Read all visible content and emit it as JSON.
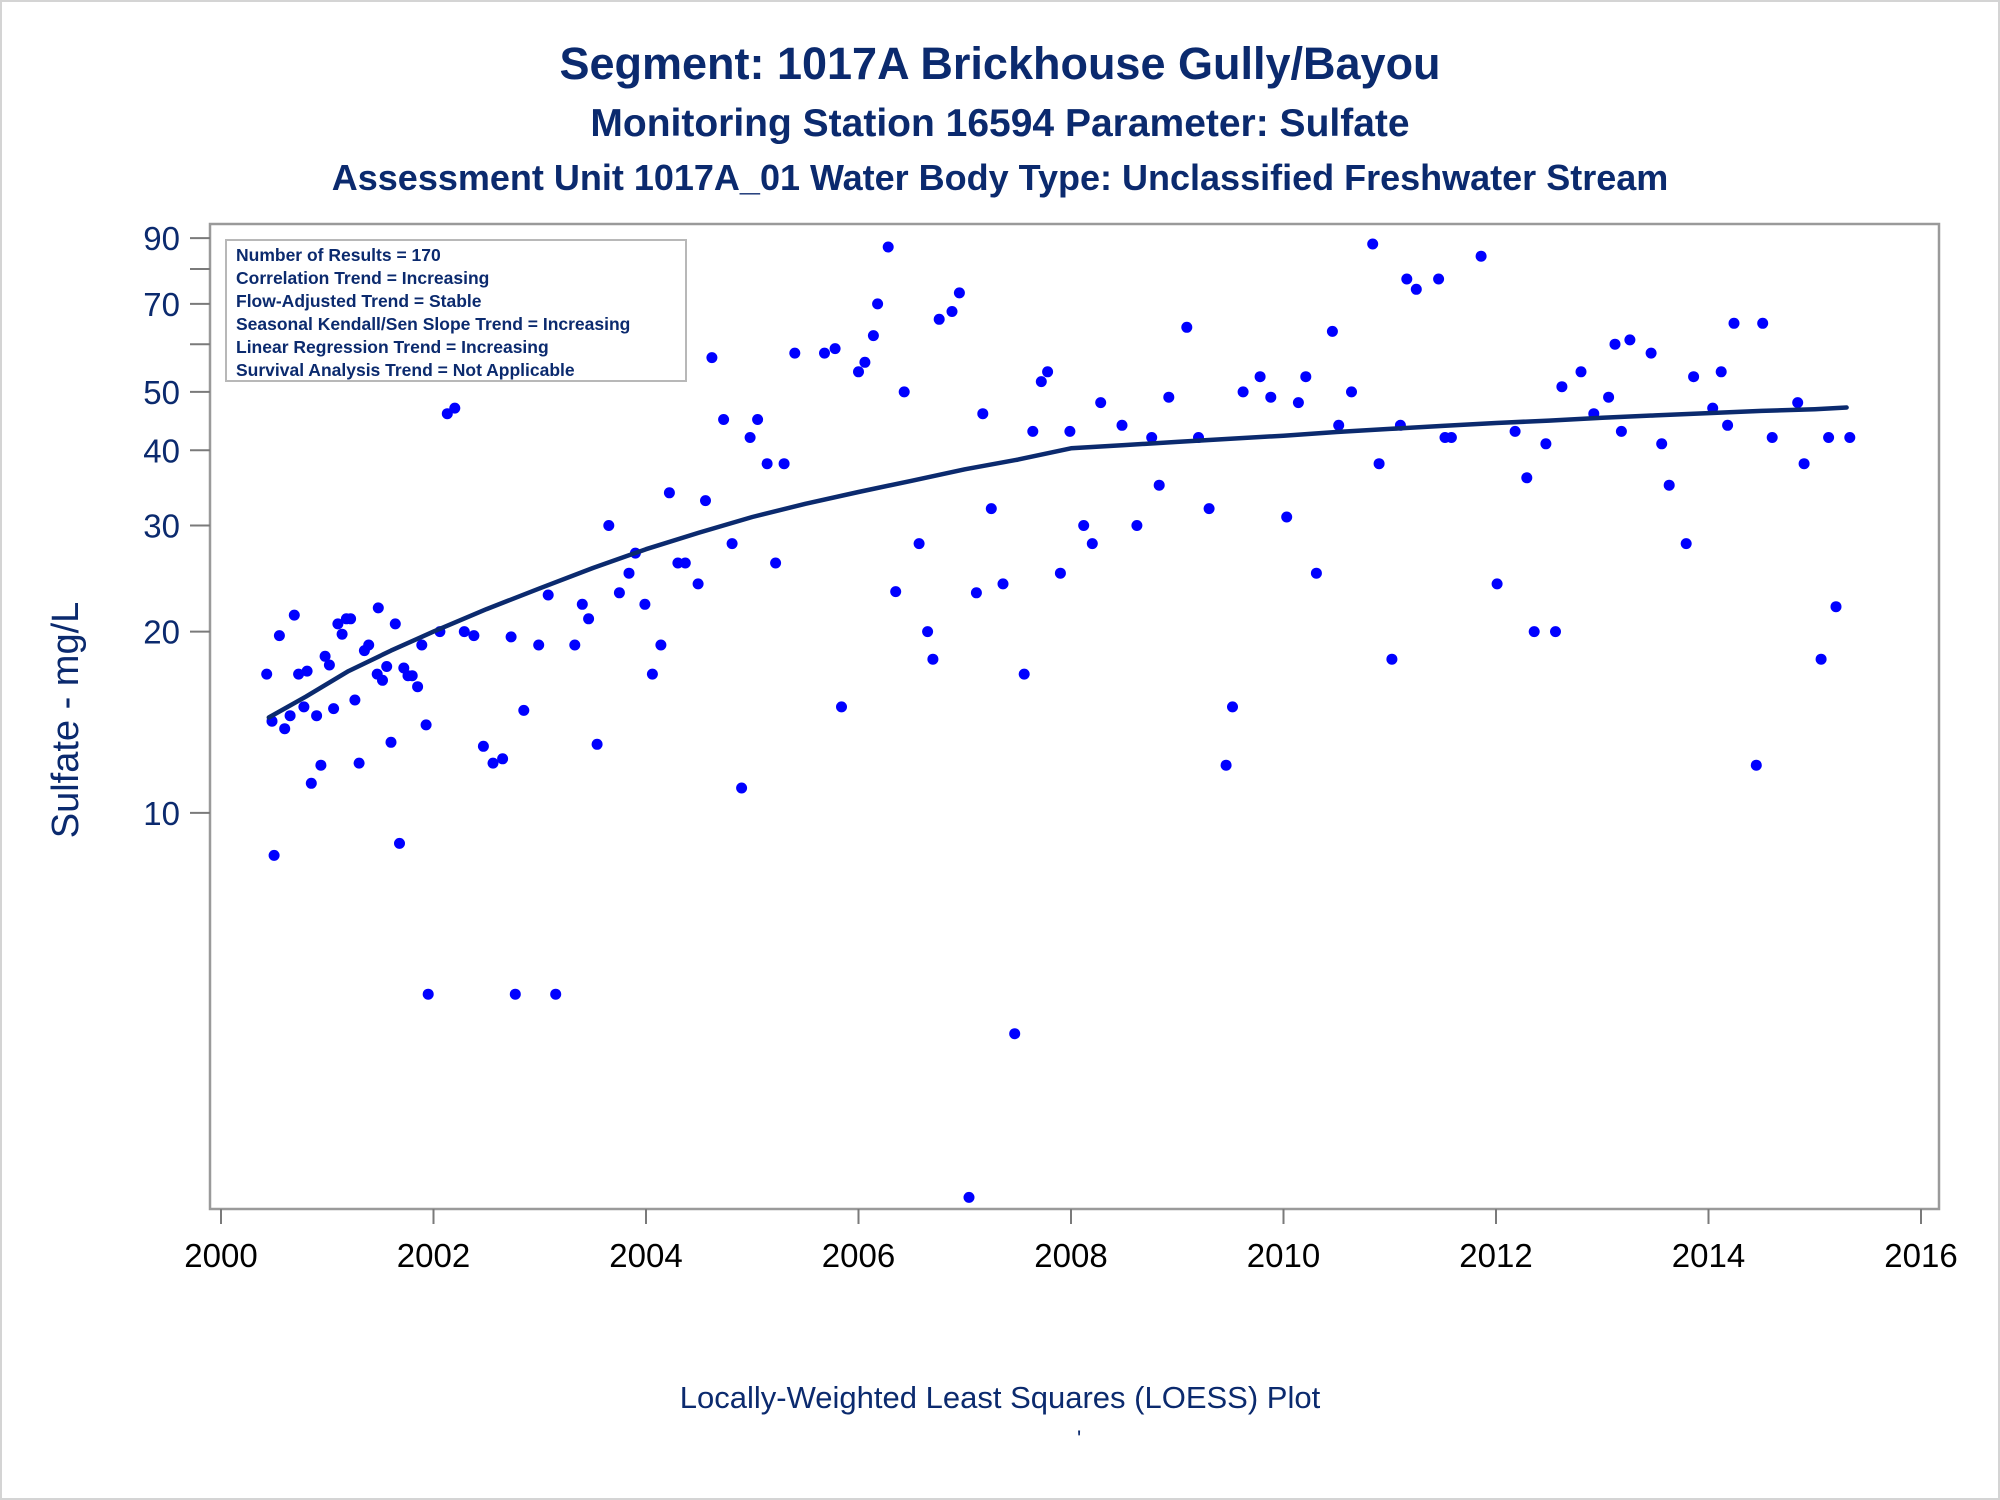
{
  "chart_data": {
    "type": "scatter",
    "title": "Segment: 1017A  Brickhouse Gully/Bayou",
    "subtitle": "Monitoring Station 16594 Parameter: Sulfate",
    "subtitle2": "Assessment Unit 1017A_01   Water Body Type: Unclassified Freshwater Stream",
    "ylabel": "Sulfate - mg/L",
    "xlabel": "",
    "footnote": "Locally-Weighted Least Squares (LOESS) Plot",
    "footmark": "'",
    "y_scale": "log",
    "xlim": [
      2000,
      2016
    ],
    "ylim": [
      2.2,
      95
    ],
    "x_ticks": [
      2000,
      2002,
      2004,
      2006,
      2008,
      2010,
      2012,
      2014,
      2016
    ],
    "y_tick_labels": [
      10,
      20,
      30,
      40,
      50,
      70,
      90
    ],
    "y_minor_ticks": [
      60,
      80
    ],
    "grid": false,
    "point_color": "#0000ff",
    "line_color": "#0b2a6e",
    "stats_box": {
      "position": "top-left",
      "lines": [
        "Number of Results = 170",
        "Correlation Trend = Increasing",
        "Flow-Adjusted Trend = Stable",
        "Seasonal Kendall/Sen Slope Trend = Increasing",
        "Linear Regression Trend = Increasing",
        "Survival Analysis Trend = Not Applicable"
      ]
    },
    "series": [
      {
        "type": "scatter",
        "points": [
          [
            2000.43,
            17
          ],
          [
            2000.48,
            14.2
          ],
          [
            2000.5,
            8.5
          ],
          [
            2000.55,
            19.7
          ],
          [
            2000.6,
            13.8
          ],
          [
            2000.65,
            14.5
          ],
          [
            2000.69,
            21.3
          ],
          [
            2000.73,
            17
          ],
          [
            2000.78,
            15
          ],
          [
            2000.81,
            17.2
          ],
          [
            2000.85,
            11.2
          ],
          [
            2000.9,
            14.5
          ],
          [
            2000.94,
            12
          ],
          [
            2000.98,
            18.2
          ],
          [
            2001.02,
            17.6
          ],
          [
            2001.06,
            14.9
          ],
          [
            2001.1,
            20.6
          ],
          [
            2001.14,
            19.8
          ],
          [
            2001.18,
            21
          ],
          [
            2001.22,
            21
          ],
          [
            2001.26,
            15.4
          ],
          [
            2001.3,
            12.1
          ],
          [
            2001.35,
            18.6
          ],
          [
            2001.39,
            19
          ],
          [
            2001.47,
            17
          ],
          [
            2001.48,
            21.9
          ],
          [
            2001.52,
            16.6
          ],
          [
            2001.56,
            17.5
          ],
          [
            2001.6,
            13.1
          ],
          [
            2001.64,
            20.6
          ],
          [
            2001.68,
            8.9
          ],
          [
            2001.72,
            17.4
          ],
          [
            2001.76,
            16.9
          ],
          [
            2001.8,
            16.9
          ],
          [
            2001.85,
            16.2
          ],
          [
            2001.89,
            19
          ],
          [
            2001.93,
            14
          ],
          [
            2001.95,
            5
          ],
          [
            2002.06,
            20
          ],
          [
            2002.13,
            46
          ],
          [
            2002.2,
            47
          ],
          [
            2002.29,
            20
          ],
          [
            2002.38,
            19.7
          ],
          [
            2002.47,
            12.9
          ],
          [
            2002.56,
            12.1
          ],
          [
            2002.65,
            12.3
          ],
          [
            2002.73,
            19.6
          ],
          [
            2002.77,
            5
          ],
          [
            2002.85,
            14.8
          ],
          [
            2002.99,
            19
          ],
          [
            2003.08,
            23
          ],
          [
            2003.15,
            5
          ],
          [
            2003.33,
            19
          ],
          [
            2003.4,
            22.2
          ],
          [
            2003.46,
            21
          ],
          [
            2003.54,
            13
          ],
          [
            2003.65,
            30
          ],
          [
            2003.75,
            23.2
          ],
          [
            2003.84,
            25
          ],
          [
            2003.9,
            27
          ],
          [
            2003.99,
            22.2
          ],
          [
            2004.06,
            17
          ],
          [
            2004.14,
            19
          ],
          [
            2004.22,
            34
          ],
          [
            2004.3,
            26
          ],
          [
            2004.37,
            26
          ],
          [
            2004.49,
            24
          ],
          [
            2004.56,
            33
          ],
          [
            2004.62,
            57
          ],
          [
            2004.73,
            45
          ],
          [
            2004.81,
            28
          ],
          [
            2004.9,
            11
          ],
          [
            2004.98,
            42
          ],
          [
            2005.05,
            45
          ],
          [
            2005.14,
            38
          ],
          [
            2005.22,
            26
          ],
          [
            2005.3,
            38
          ],
          [
            2005.4,
            58
          ],
          [
            2005.68,
            58
          ],
          [
            2005.78,
            59
          ],
          [
            2005.84,
            15
          ],
          [
            2006.0,
            54
          ],
          [
            2006.06,
            56
          ],
          [
            2006.14,
            62
          ],
          [
            2006.18,
            70
          ],
          [
            2006.28,
            87
          ],
          [
            2006.35,
            23.3
          ],
          [
            2006.43,
            50
          ],
          [
            2006.57,
            28
          ],
          [
            2006.65,
            20
          ],
          [
            2006.7,
            18
          ],
          [
            2006.76,
            66
          ],
          [
            2006.88,
            68
          ],
          [
            2006.95,
            73
          ],
          [
            2007.04,
            2.3
          ],
          [
            2007.11,
            23.2
          ],
          [
            2007.17,
            46
          ],
          [
            2007.25,
            32
          ],
          [
            2007.36,
            24
          ],
          [
            2007.47,
            4.3
          ],
          [
            2007.56,
            17
          ],
          [
            2007.64,
            43
          ],
          [
            2007.72,
            52
          ],
          [
            2007.78,
            54
          ],
          [
            2007.9,
            25
          ],
          [
            2007.99,
            43
          ],
          [
            2008.12,
            30
          ],
          [
            2008.2,
            28
          ],
          [
            2008.28,
            48
          ],
          [
            2008.48,
            44
          ],
          [
            2008.62,
            30
          ],
          [
            2008.76,
            42
          ],
          [
            2008.83,
            35
          ],
          [
            2008.92,
            49
          ],
          [
            2009.09,
            64
          ],
          [
            2009.2,
            42
          ],
          [
            2009.3,
            32
          ],
          [
            2009.46,
            12
          ],
          [
            2009.52,
            15
          ],
          [
            2009.62,
            50
          ],
          [
            2009.78,
            53
          ],
          [
            2009.88,
            49
          ],
          [
            2010.03,
            31
          ],
          [
            2010.14,
            48
          ],
          [
            2010.21,
            53
          ],
          [
            2010.31,
            25
          ],
          [
            2010.46,
            63
          ],
          [
            2010.52,
            44
          ],
          [
            2010.64,
            50
          ],
          [
            2010.84,
            88
          ],
          [
            2010.9,
            38
          ],
          [
            2011.02,
            18
          ],
          [
            2011.1,
            44
          ],
          [
            2011.16,
            77
          ],
          [
            2011.25,
            74
          ],
          [
            2011.46,
            77
          ],
          [
            2011.52,
            42
          ],
          [
            2011.58,
            42
          ],
          [
            2011.86,
            84
          ],
          [
            2012.01,
            24
          ],
          [
            2012.18,
            43
          ],
          [
            2012.29,
            36
          ],
          [
            2012.36,
            20
          ],
          [
            2012.47,
            41
          ],
          [
            2012.56,
            20
          ],
          [
            2012.62,
            51
          ],
          [
            2012.8,
            54
          ],
          [
            2012.92,
            46
          ],
          [
            2013.06,
            49
          ],
          [
            2013.12,
            60
          ],
          [
            2013.18,
            43
          ],
          [
            2013.26,
            61
          ],
          [
            2013.46,
            58
          ],
          [
            2013.56,
            41
          ],
          [
            2013.63,
            35
          ],
          [
            2013.79,
            28
          ],
          [
            2013.86,
            53
          ],
          [
            2014.04,
            47
          ],
          [
            2014.12,
            54
          ],
          [
            2014.18,
            44
          ],
          [
            2014.24,
            65
          ],
          [
            2014.45,
            12
          ],
          [
            2014.51,
            65
          ],
          [
            2014.6,
            42
          ],
          [
            2014.84,
            48
          ],
          [
            2014.9,
            38
          ],
          [
            2015.06,
            18
          ],
          [
            2015.13,
            42
          ],
          [
            2015.2,
            22
          ],
          [
            2015.33,
            42
          ]
        ]
      },
      {
        "type": "line",
        "points": [
          [
            2000.45,
            14.4
          ],
          [
            2000.8,
            15.6
          ],
          [
            2001.2,
            17.2
          ],
          [
            2001.6,
            18.6
          ],
          [
            2002.0,
            20.0
          ],
          [
            2002.5,
            21.8
          ],
          [
            2003.0,
            23.6
          ],
          [
            2003.5,
            25.5
          ],
          [
            2004.0,
            27.4
          ],
          [
            2004.5,
            29.2
          ],
          [
            2005.0,
            31.0
          ],
          [
            2005.5,
            32.6
          ],
          [
            2006.0,
            34.1
          ],
          [
            2006.5,
            35.6
          ],
          [
            2007.0,
            37.2
          ],
          [
            2007.5,
            38.6
          ],
          [
            2008.0,
            40.3
          ],
          [
            2008.5,
            40.8
          ],
          [
            2009.0,
            41.3
          ],
          [
            2009.5,
            41.8
          ],
          [
            2010.0,
            42.3
          ],
          [
            2010.5,
            42.9
          ],
          [
            2011.0,
            43.4
          ],
          [
            2011.5,
            43.9
          ],
          [
            2012.0,
            44.4
          ],
          [
            2012.5,
            44.8
          ],
          [
            2013.0,
            45.3
          ],
          [
            2013.5,
            45.7
          ],
          [
            2014.0,
            46.1
          ],
          [
            2014.5,
            46.5
          ],
          [
            2015.0,
            46.8
          ],
          [
            2015.3,
            47.1
          ]
        ]
      }
    ]
  }
}
